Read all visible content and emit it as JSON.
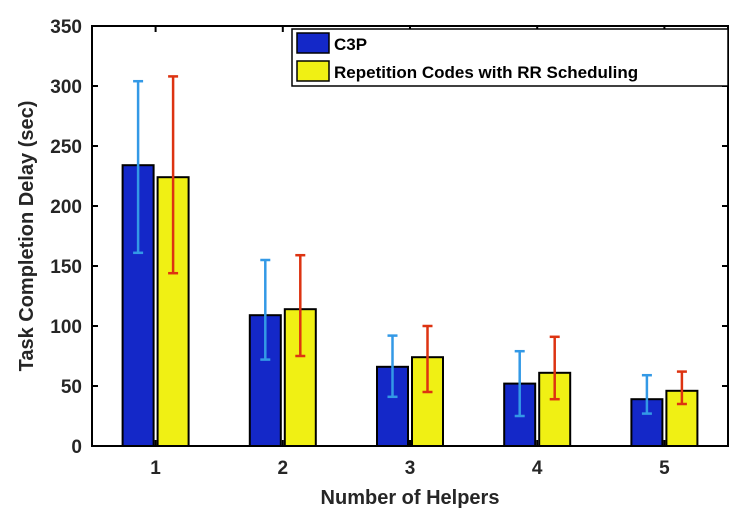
{
  "chart_data": {
    "type": "bar",
    "xlabel": "Number of Helpers",
    "ylabel": "Task Completion Delay (sec)",
    "ylim": [
      0,
      350
    ],
    "yticks": [
      0,
      50,
      100,
      150,
      200,
      250,
      300,
      350
    ],
    "categories": [
      "1",
      "2",
      "3",
      "4",
      "5"
    ],
    "legend_position": "top-right",
    "series": [
      {
        "name": "C3P",
        "color": "#1428c8",
        "error_color": "#3399e6",
        "values": [
          234,
          109,
          66,
          52,
          39
        ],
        "err_low": [
          161,
          72,
          41,
          25,
          27
        ],
        "err_high": [
          304,
          155,
          92,
          79,
          59
        ]
      },
      {
        "name": "Repetition Codes with RR Scheduling",
        "color": "#f0f014",
        "error_color": "#dd3311",
        "values": [
          224,
          114,
          74,
          61,
          46
        ],
        "err_low": [
          144,
          75,
          45,
          39,
          35
        ],
        "err_high": [
          308,
          159,
          100,
          91,
          62
        ]
      }
    ]
  }
}
